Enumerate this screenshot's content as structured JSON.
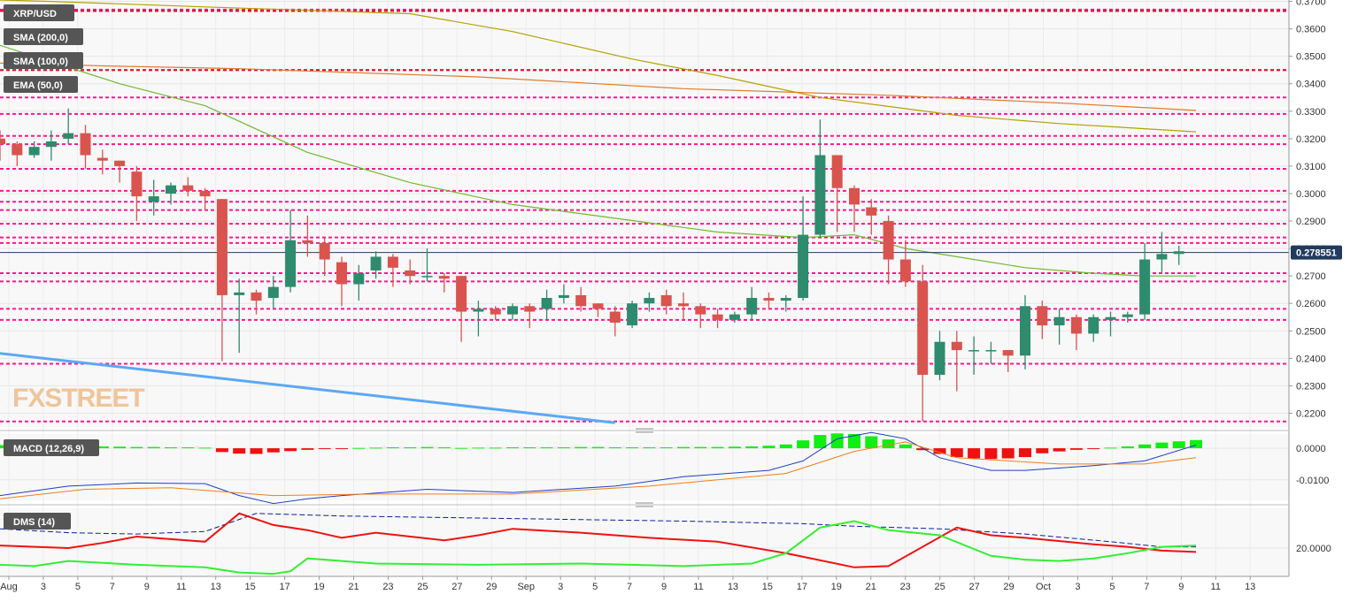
{
  "header": {
    "symbol": "XRP/USD",
    "indicators": [
      "SMA (200,0)",
      "SMA (100,0)",
      "EMA (50,0)"
    ],
    "watermark": "FXSTREET"
  },
  "colors": {
    "bull": "#2e8b6e",
    "bear": "#d9534f",
    "sma200": "#e07c2c",
    "sma100": "#b5a000",
    "ema50": "#6fb92f",
    "trendline": "#5ba8f5",
    "hlevel": "#ff1493",
    "hlevel_red": "#e0102a",
    "macd_line": "#1f3fbf",
    "signal_line": "#f07f1a",
    "dmi_plus": "#33ee33",
    "dmi_minus": "#ee1111",
    "adx": "#0a1f9e"
  },
  "chart_data": [
    {
      "type": "candlestick",
      "title": "XRP/USD",
      "ylim": [
        0.215,
        0.3705
      ],
      "yticks": [
        "0.3700",
        "0.3600",
        "0.3500",
        "0.3400",
        "0.3300",
        "0.3200",
        "0.3100",
        "0.3000",
        "0.2900",
        "0.2800",
        "0.2700",
        "0.2600",
        "0.2500",
        "0.2400",
        "0.2300",
        "0.2200"
      ],
      "yticks_values": [
        0.37,
        0.36,
        0.35,
        0.34,
        0.33,
        0.32,
        0.31,
        0.3,
        0.29,
        0.28,
        0.27,
        0.26,
        0.25,
        0.24,
        0.23,
        0.22
      ],
      "current_price": "0.278551",
      "current_value": 0.27855,
      "x_tick_labels": [
        "Aug",
        "3",
        "5",
        "7",
        "9",
        "11",
        "13",
        "15",
        "17",
        "19",
        "21",
        "23",
        "25",
        "27",
        "29",
        "Sep",
        "3",
        "5",
        "7",
        "9",
        "11",
        "13",
        "15",
        "17",
        "19",
        "21",
        "23",
        "25",
        "27",
        "29",
        "Oct",
        "3",
        "5",
        "7",
        "9",
        "11",
        "13"
      ],
      "candles": [
        {
          "o": 0.32,
          "h": 0.323,
          "l": 0.312,
          "c": 0.318
        },
        {
          "o": 0.318,
          "h": 0.319,
          "l": 0.31,
          "c": 0.314
        },
        {
          "o": 0.314,
          "h": 0.319,
          "l": 0.313,
          "c": 0.317
        },
        {
          "o": 0.317,
          "h": 0.323,
          "l": 0.312,
          "c": 0.319
        },
        {
          "o": 0.32,
          "h": 0.331,
          "l": 0.318,
          "c": 0.322
        },
        {
          "o": 0.322,
          "h": 0.325,
          "l": 0.309,
          "c": 0.314
        },
        {
          "o": 0.313,
          "h": 0.316,
          "l": 0.307,
          "c": 0.312
        },
        {
          "o": 0.312,
          "h": 0.312,
          "l": 0.304,
          "c": 0.31
        },
        {
          "o": 0.308,
          "h": 0.31,
          "l": 0.29,
          "c": 0.299
        },
        {
          "o": 0.297,
          "h": 0.305,
          "l": 0.292,
          "c": 0.299
        },
        {
          "o": 0.3,
          "h": 0.304,
          "l": 0.296,
          "c": 0.303
        },
        {
          "o": 0.303,
          "h": 0.306,
          "l": 0.299,
          "c": 0.301
        },
        {
          "o": 0.301,
          "h": 0.302,
          "l": 0.294,
          "c": 0.299
        },
        {
          "o": 0.298,
          "h": 0.298,
          "l": 0.239,
          "c": 0.263
        },
        {
          "o": 0.263,
          "h": 0.269,
          "l": 0.242,
          "c": 0.264
        },
        {
          "o": 0.264,
          "h": 0.265,
          "l": 0.256,
          "c": 0.261
        },
        {
          "o": 0.262,
          "h": 0.27,
          "l": 0.258,
          "c": 0.266
        },
        {
          "o": 0.266,
          "h": 0.294,
          "l": 0.264,
          "c": 0.283
        },
        {
          "o": 0.283,
          "h": 0.292,
          "l": 0.277,
          "c": 0.282
        },
        {
          "o": 0.282,
          "h": 0.284,
          "l": 0.27,
          "c": 0.276
        },
        {
          "o": 0.275,
          "h": 0.277,
          "l": 0.259,
          "c": 0.267
        },
        {
          "o": 0.267,
          "h": 0.274,
          "l": 0.261,
          "c": 0.271
        },
        {
          "o": 0.272,
          "h": 0.279,
          "l": 0.269,
          "c": 0.277
        },
        {
          "o": 0.277,
          "h": 0.278,
          "l": 0.266,
          "c": 0.273
        },
        {
          "o": 0.272,
          "h": 0.276,
          "l": 0.267,
          "c": 0.27
        },
        {
          "o": 0.27,
          "h": 0.28,
          "l": 0.268,
          "c": 0.27
        },
        {
          "o": 0.27,
          "h": 0.271,
          "l": 0.264,
          "c": 0.269
        },
        {
          "o": 0.27,
          "h": 0.27,
          "l": 0.246,
          "c": 0.257
        },
        {
          "o": 0.257,
          "h": 0.261,
          "l": 0.248,
          "c": 0.258
        },
        {
          "o": 0.258,
          "h": 0.259,
          "l": 0.254,
          "c": 0.256
        },
        {
          "o": 0.256,
          "h": 0.26,
          "l": 0.254,
          "c": 0.259
        },
        {
          "o": 0.259,
          "h": 0.26,
          "l": 0.251,
          "c": 0.257
        },
        {
          "o": 0.258,
          "h": 0.265,
          "l": 0.254,
          "c": 0.262
        },
        {
          "o": 0.262,
          "h": 0.267,
          "l": 0.26,
          "c": 0.263
        },
        {
          "o": 0.263,
          "h": 0.266,
          "l": 0.257,
          "c": 0.259
        },
        {
          "o": 0.26,
          "h": 0.26,
          "l": 0.255,
          "c": 0.258
        },
        {
          "o": 0.257,
          "h": 0.259,
          "l": 0.248,
          "c": 0.253
        },
        {
          "o": 0.252,
          "h": 0.261,
          "l": 0.251,
          "c": 0.26
        },
        {
          "o": 0.26,
          "h": 0.264,
          "l": 0.257,
          "c": 0.262
        },
        {
          "o": 0.263,
          "h": 0.265,
          "l": 0.256,
          "c": 0.259
        },
        {
          "o": 0.26,
          "h": 0.264,
          "l": 0.254,
          "c": 0.259
        },
        {
          "o": 0.259,
          "h": 0.26,
          "l": 0.251,
          "c": 0.256
        },
        {
          "o": 0.256,
          "h": 0.258,
          "l": 0.251,
          "c": 0.254
        },
        {
          "o": 0.254,
          "h": 0.257,
          "l": 0.253,
          "c": 0.256
        },
        {
          "o": 0.256,
          "h": 0.266,
          "l": 0.254,
          "c": 0.262
        },
        {
          "o": 0.262,
          "h": 0.264,
          "l": 0.258,
          "c": 0.261
        },
        {
          "o": 0.261,
          "h": 0.263,
          "l": 0.257,
          "c": 0.262
        },
        {
          "o": 0.262,
          "h": 0.299,
          "l": 0.261,
          "c": 0.285
        },
        {
          "o": 0.285,
          "h": 0.327,
          "l": 0.284,
          "c": 0.314
        },
        {
          "o": 0.314,
          "h": 0.314,
          "l": 0.286,
          "c": 0.302
        },
        {
          "o": 0.302,
          "h": 0.303,
          "l": 0.286,
          "c": 0.296
        },
        {
          "o": 0.295,
          "h": 0.298,
          "l": 0.285,
          "c": 0.292
        },
        {
          "o": 0.29,
          "h": 0.292,
          "l": 0.267,
          "c": 0.276
        },
        {
          "o": 0.276,
          "h": 0.283,
          "l": 0.266,
          "c": 0.268
        },
        {
          "o": 0.268,
          "h": 0.274,
          "l": 0.217,
          "c": 0.234
        },
        {
          "o": 0.234,
          "h": 0.25,
          "l": 0.232,
          "c": 0.246
        },
        {
          "o": 0.246,
          "h": 0.25,
          "l": 0.228,
          "c": 0.243
        },
        {
          "o": 0.243,
          "h": 0.248,
          "l": 0.234,
          "c": 0.243
        },
        {
          "o": 0.243,
          "h": 0.246,
          "l": 0.238,
          "c": 0.243
        },
        {
          "o": 0.243,
          "h": 0.243,
          "l": 0.235,
          "c": 0.241
        },
        {
          "o": 0.241,
          "h": 0.263,
          "l": 0.236,
          "c": 0.259
        },
        {
          "o": 0.259,
          "h": 0.261,
          "l": 0.247,
          "c": 0.252
        },
        {
          "o": 0.252,
          "h": 0.258,
          "l": 0.245,
          "c": 0.255
        },
        {
          "o": 0.255,
          "h": 0.256,
          "l": 0.243,
          "c": 0.249
        },
        {
          "o": 0.249,
          "h": 0.256,
          "l": 0.246,
          "c": 0.255
        },
        {
          "o": 0.254,
          "h": 0.257,
          "l": 0.248,
          "c": 0.255
        },
        {
          "o": 0.255,
          "h": 0.257,
          "l": 0.253,
          "c": 0.256
        },
        {
          "o": 0.256,
          "h": 0.282,
          "l": 0.254,
          "c": 0.276
        },
        {
          "o": 0.276,
          "h": 0.286,
          "l": 0.271,
          "c": 0.278
        },
        {
          "o": 0.278,
          "h": 0.281,
          "l": 0.274,
          "c": 0.279
        }
      ],
      "sma200": [
        [
          0,
          0.3705
        ],
        [
          3,
          0.37
        ],
        [
          12,
          0.368
        ],
        [
          24,
          0.3655
        ],
        [
          30,
          0.359
        ],
        [
          37,
          0.349
        ],
        [
          42,
          0.343
        ],
        [
          48,
          0.335
        ],
        [
          56,
          0.3285
        ],
        [
          62,
          0.3255
        ],
        [
          70,
          0.3225
        ]
      ],
      "sma100": [
        [
          0,
          0.3475
        ],
        [
          6,
          0.3465
        ],
        [
          14,
          0.3455
        ],
        [
          28,
          0.3425
        ],
        [
          40,
          0.3382
        ],
        [
          52,
          0.3358
        ],
        [
          62,
          0.333
        ],
        [
          70,
          0.3303
        ]
      ],
      "ema50": [
        [
          0,
          0.354
        ],
        [
          3,
          0.348
        ],
        [
          7,
          0.34
        ],
        [
          12,
          0.332
        ],
        [
          18,
          0.315
        ],
        [
          24,
          0.304
        ],
        [
          30,
          0.296
        ],
        [
          36,
          0.291
        ],
        [
          42,
          0.286
        ],
        [
          47,
          0.284
        ],
        [
          50,
          0.285
        ],
        [
          53,
          0.28
        ],
        [
          56,
          0.277
        ],
        [
          60,
          0.273
        ],
        [
          64,
          0.271
        ],
        [
          67,
          0.27
        ],
        [
          70,
          0.27
        ]
      ],
      "trendline": [
        [
          -1,
          0.2425
        ],
        [
          36,
          0.2165
        ]
      ],
      "horizontal_levels": [
        0.367,
        0.3665,
        0.345,
        0.335,
        0.329,
        0.321,
        0.318,
        0.309,
        0.301,
        0.297,
        0.294,
        0.289,
        0.284,
        0.282,
        0.271,
        0.268,
        0.258,
        0.254,
        0.238,
        0.217
      ],
      "horizontal_levels_red": [
        0.3665,
        0.345
      ]
    },
    {
      "type": "bar",
      "title": "MACD (12,26,9)",
      "ylim": [
        -0.0165,
        0.0045
      ],
      "yticks": [
        "0.0000",
        "-0.0100"
      ],
      "yticks_values": [
        0.0,
        -0.01
      ],
      "histogram": [
        0.001,
        0.001,
        0.001,
        0.001,
        0.001,
        0.0008,
        0.0006,
        0.0005,
        0.0004,
        0.0004,
        0.0003,
        0.0003,
        0.0002,
        -0.0012,
        -0.0017,
        -0.0018,
        -0.0013,
        -0.0009,
        -0.0005,
        -0.0002,
        -0.0001,
        0.0001,
        0.0002,
        0.0003,
        0.0003,
        0.0004,
        0.0003,
        0.0001,
        0.0002,
        0.0002,
        0.0003,
        0.0003,
        0.0003,
        0.0003,
        0.0004,
        0.0004,
        0.0003,
        0.0003,
        0.0003,
        0.0003,
        0.0004,
        0.0004,
        0.0004,
        0.0005,
        0.0006,
        0.0008,
        0.0012,
        0.0025,
        0.0042,
        0.0047,
        0.0045,
        0.0038,
        0.0028,
        0.0012,
        -0.0006,
        -0.0018,
        -0.0028,
        -0.0032,
        -0.0034,
        -0.0032,
        -0.0028,
        -0.0016,
        -0.001,
        -0.0005,
        -0.0002,
        0.0002,
        0.0006,
        0.0012,
        0.0018,
        0.0022,
        0.0026
      ],
      "macd": [
        [
          0,
          -0.015
        ],
        [
          4,
          -0.012
        ],
        [
          8,
          -0.011
        ],
        [
          12,
          -0.0112
        ],
        [
          14,
          -0.015
        ],
        [
          16,
          -0.0175
        ],
        [
          18,
          -0.016
        ],
        [
          20,
          -0.015
        ],
        [
          25,
          -0.013
        ],
        [
          30,
          -0.014
        ],
        [
          36,
          -0.012
        ],
        [
          40,
          -0.009
        ],
        [
          45,
          -0.007
        ],
        [
          47,
          -0.004
        ],
        [
          49,
          0.003
        ],
        [
          51,
          0.005
        ],
        [
          53,
          0.003
        ],
        [
          55,
          -0.003
        ],
        [
          58,
          -0.007
        ],
        [
          60,
          -0.007
        ],
        [
          64,
          -0.0055
        ],
        [
          67,
          -0.004
        ],
        [
          70,
          0.001
        ]
      ],
      "signal": [
        [
          0,
          -0.016
        ],
        [
          5,
          -0.013
        ],
        [
          10,
          -0.0125
        ],
        [
          16,
          -0.015
        ],
        [
          22,
          -0.0145
        ],
        [
          30,
          -0.0145
        ],
        [
          38,
          -0.012
        ],
        [
          46,
          -0.008
        ],
        [
          50,
          -0.001
        ],
        [
          53,
          0.002
        ],
        [
          56,
          -0.003
        ],
        [
          62,
          -0.005
        ],
        [
          67,
          -0.005
        ],
        [
          70,
          -0.003
        ]
      ]
    },
    {
      "type": "line",
      "title": "DMS (14)",
      "ylim": [
        9.0,
        35.5
      ],
      "yticks": [
        "20.0000"
      ],
      "yticks_values": [
        20.0
      ],
      "adx": [
        [
          0,
          27.5
        ],
        [
          4,
          26.0
        ],
        [
          8,
          25.5
        ],
        [
          12,
          26.5
        ],
        [
          15,
          33.5
        ],
        [
          20,
          32.5
        ],
        [
          30,
          31.5
        ],
        [
          40,
          30.5
        ],
        [
          47,
          29.5
        ],
        [
          50,
          28.5
        ],
        [
          55,
          27.5
        ],
        [
          60,
          25.5
        ],
        [
          65,
          22.5
        ],
        [
          68,
          20.5
        ],
        [
          70,
          20.5
        ]
      ],
      "dmi_plus": [
        [
          0,
          13.5
        ],
        [
          2,
          13.0
        ],
        [
          4,
          15.0
        ],
        [
          8,
          13.5
        ],
        [
          12,
          12.5
        ],
        [
          14,
          10.5
        ],
        [
          16,
          10.0
        ],
        [
          17,
          11.0
        ],
        [
          18,
          16.0
        ],
        [
          22,
          14.0
        ],
        [
          28,
          13.5
        ],
        [
          34,
          14.0
        ],
        [
          40,
          13.0
        ],
        [
          44,
          14.0
        ],
        [
          46,
          18.0
        ],
        [
          48,
          28.0
        ],
        [
          50,
          30.5
        ],
        [
          52,
          27.0
        ],
        [
          55,
          25.0
        ],
        [
          58,
          17.0
        ],
        [
          60,
          15.5
        ],
        [
          62,
          15.0
        ],
        [
          64,
          16.0
        ],
        [
          66,
          18.0
        ],
        [
          68,
          20.5
        ],
        [
          70,
          21.0
        ]
      ],
      "dmi_minus": [
        [
          0,
          21.0
        ],
        [
          4,
          20.0
        ],
        [
          6,
          22.0
        ],
        [
          8,
          24.5
        ],
        [
          12,
          22.5
        ],
        [
          14,
          33.5
        ],
        [
          16,
          29.0
        ],
        [
          18,
          27.0
        ],
        [
          20,
          24.0
        ],
        [
          22,
          26.0
        ],
        [
          26,
          23.0
        ],
        [
          28,
          25.0
        ],
        [
          30,
          27.5
        ],
        [
          34,
          26.0
        ],
        [
          38,
          24.0
        ],
        [
          42,
          22.5
        ],
        [
          46,
          18.0
        ],
        [
          50,
          12.5
        ],
        [
          52,
          13.0
        ],
        [
          56,
          28.0
        ],
        [
          58,
          25.0
        ],
        [
          60,
          24.0
        ],
        [
          64,
          21.5
        ],
        [
          66,
          20.5
        ],
        [
          68,
          19.0
        ],
        [
          70,
          18.5
        ]
      ]
    }
  ]
}
